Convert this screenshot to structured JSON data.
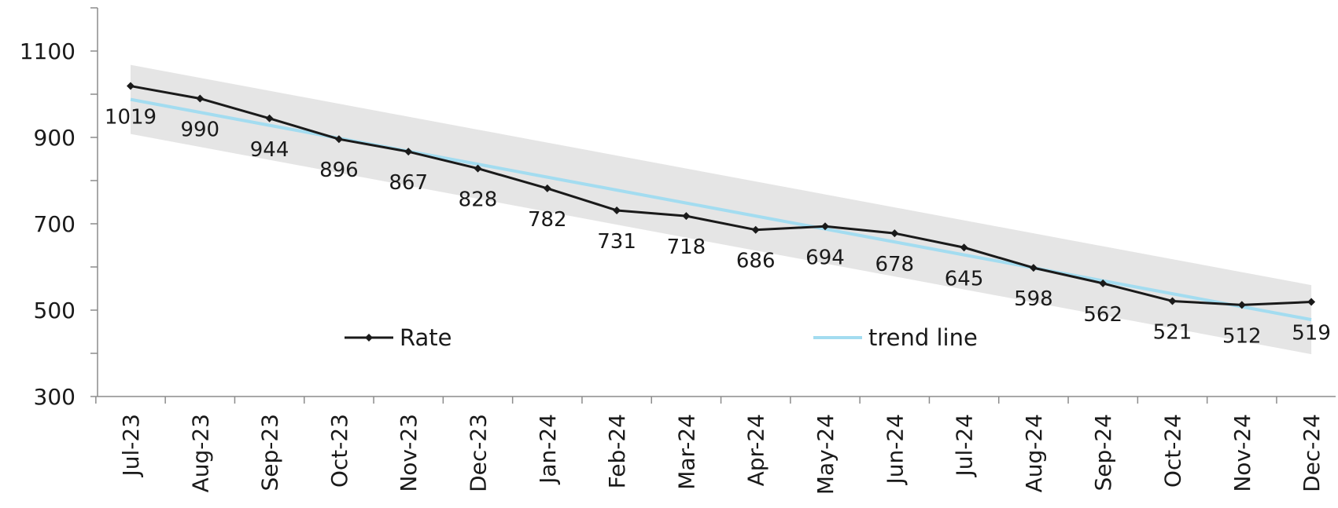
{
  "chart_data": {
    "type": "line",
    "categories": [
      "Jul-23",
      "Aug-23",
      "Sep-23",
      "Oct-23",
      "Nov-23",
      "Dec-23",
      "Jan-24",
      "Feb-24",
      "Mar-24",
      "Apr-24",
      "May-24",
      "Jun-24",
      "Jul-24",
      "Aug-24",
      "Sep-24",
      "Oct-24",
      "Nov-24",
      "Dec-24"
    ],
    "series": [
      {
        "name": "Rate",
        "values": [
          1019,
          990,
          944,
          896,
          867,
          828,
          782,
          731,
          718,
          686,
          694,
          678,
          645,
          598,
          562,
          521,
          512,
          519
        ],
        "color": "#1a1a1a",
        "marker": "diamond"
      },
      {
        "name": "trend line",
        "values": [
          988,
          958,
          928,
          898,
          868,
          838,
          808,
          778,
          748,
          718,
          688,
          658,
          628,
          598,
          568,
          538,
          508,
          478
        ],
        "color": "#a3dcf0"
      }
    ],
    "band": {
      "upper": [
        1068,
        1038,
        1008,
        978,
        948,
        918,
        888,
        858,
        828,
        798,
        768,
        738,
        708,
        678,
        648,
        618,
        588,
        558
      ],
      "lower": [
        908,
        878,
        848,
        818,
        788,
        758,
        728,
        698,
        668,
        638,
        608,
        578,
        548,
        518,
        488,
        458,
        428,
        398
      ],
      "color": "#e5e5e5"
    },
    "data_labels": [
      "1019",
      "990",
      "944",
      "896",
      "867",
      "828",
      "782",
      "731",
      "718",
      "686",
      "694",
      "678",
      "645",
      "598",
      "562",
      "521",
      "512",
      "519"
    ],
    "y_ticks": [
      "1100",
      "900",
      "700",
      "500",
      "300"
    ],
    "ylim": [
      300,
      1200
    ],
    "title": "",
    "xlabel": "",
    "ylabel": "",
    "grid": false,
    "legend_position": "bottom-inside"
  },
  "legend": {
    "rate_label": "Rate",
    "trend_label": "trend line"
  }
}
